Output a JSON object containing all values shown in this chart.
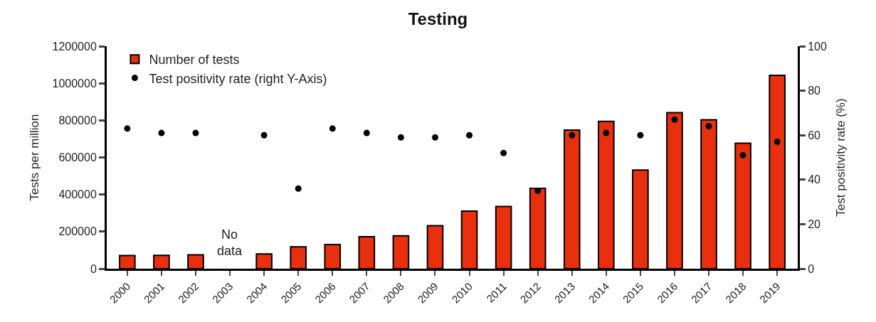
{
  "chart_data": {
    "type": "bar",
    "title": "Testing",
    "ylabel": "Tests per million",
    "y2label": "Test positivity rate (%)",
    "categories": [
      "2000",
      "2001",
      "2002",
      "2003",
      "2004",
      "2005",
      "2006",
      "2007",
      "2008",
      "2009",
      "2010",
      "2011",
      "2012",
      "2013",
      "2014",
      "2015",
      "2016",
      "2017",
      "2018",
      "2019"
    ],
    "series": [
      {
        "name": "Number of tests",
        "color": "#e8300e",
        "values": [
          71000,
          72000,
          75000,
          null,
          80000,
          118000,
          130000,
          173000,
          177000,
          232000,
          311000,
          335000,
          433000,
          748000,
          795000,
          532000,
          842000,
          803000,
          677000,
          1043000
        ]
      },
      {
        "name": "Test positivity rate (right Y-Axis)",
        "type": "scatter",
        "axis": "y2",
        "color": "#000000",
        "values": [
          63,
          61,
          61,
          null,
          60,
          36,
          63,
          61,
          59,
          59,
          60,
          52,
          35,
          60,
          61,
          60,
          67,
          64,
          51,
          57
        ]
      }
    ],
    "ylim": [
      0,
      1200000
    ],
    "yticks": [
      0,
      200000,
      400000,
      600000,
      800000,
      1000000,
      1200000
    ],
    "y2lim": [
      0,
      100
    ],
    "y2ticks": [
      0,
      20,
      40,
      60,
      80,
      100
    ],
    "annotations": [
      "No\ndata"
    ],
    "legend": "top left",
    "marker": "circle"
  }
}
